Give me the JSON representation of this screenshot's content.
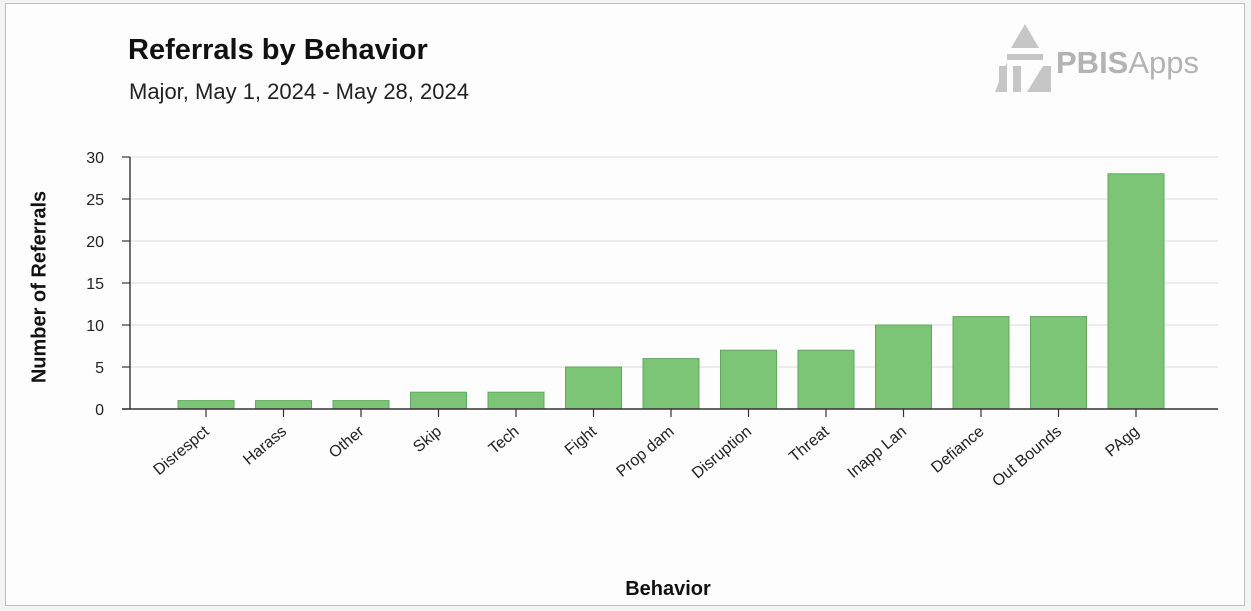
{
  "chart_data": {
    "type": "bar",
    "title": "Referrals by Behavior",
    "subtitle": "Major, May 1, 2024 - May 28, 2024",
    "xlabel": "Behavior",
    "ylabel": "Number of Referrals",
    "categories": [
      "Disrespct",
      "Harass",
      "Other",
      "Skip",
      "Tech",
      "Fight",
      "Prop dam",
      "Disruption",
      "Threat",
      "Inapp Lan",
      "Defiance",
      "Out Bounds",
      "PAgg"
    ],
    "values": [
      1,
      1,
      1,
      2,
      2,
      5,
      6,
      7,
      7,
      10,
      11,
      11,
      28
    ],
    "ylim": [
      0,
      30
    ],
    "yticks": [
      0,
      5,
      10,
      15,
      20,
      25,
      30
    ],
    "grid": true,
    "bar_color": "#7cc576",
    "bar_edge_color": "#5ea95a"
  },
  "logo": {
    "text_bold": "PBIS",
    "text_light": "Apps",
    "color": "#b3b3b3"
  }
}
